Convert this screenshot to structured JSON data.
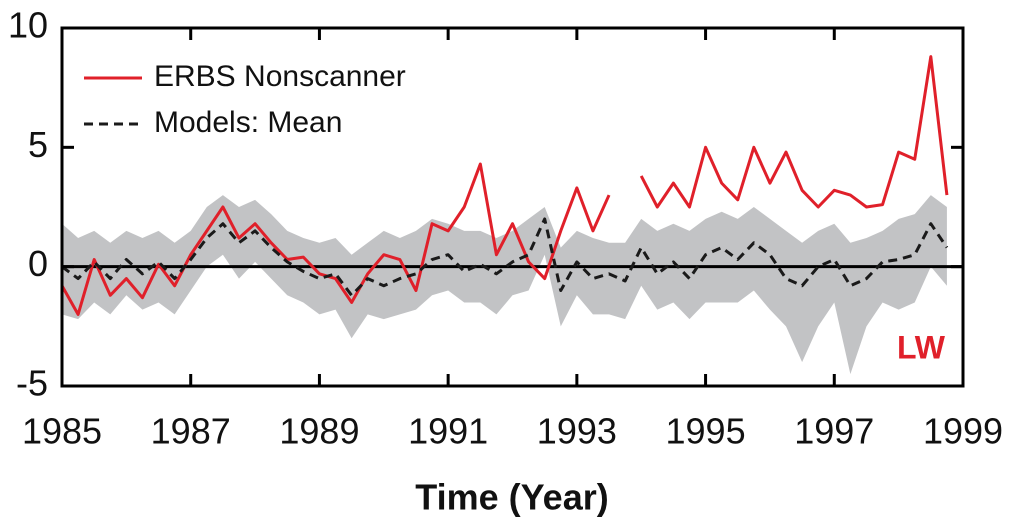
{
  "chart_data": {
    "type": "line",
    "x_label": "Time (Year)",
    "annotation": "LW",
    "annotation_color": "#e0202a",
    "x": [
      1985,
      1985.25,
      1985.5,
      1985.75,
      1986,
      1986.25,
      1986.5,
      1986.75,
      1987,
      1987.25,
      1987.5,
      1987.75,
      1988,
      1988.25,
      1988.5,
      1988.75,
      1989,
      1989.25,
      1989.5,
      1989.75,
      1990,
      1990.25,
      1990.5,
      1990.75,
      1991,
      1991.25,
      1991.5,
      1991.75,
      1992,
      1992.25,
      1992.5,
      1992.75,
      1993,
      1993.25,
      1993.5,
      1993.75,
      1994,
      1994.25,
      1994.5,
      1994.75,
      1995,
      1995.25,
      1995.5,
      1995.75,
      1996,
      1996.25,
      1996.5,
      1996.75,
      1997,
      1997.25,
      1997.5,
      1997.75,
      1998,
      1998.25,
      1998.5,
      1998.75
    ],
    "series": [
      {
        "name": "ERBS Nonscanner",
        "color": "#e0202a",
        "dash": false,
        "values": [
          -0.8,
          -2,
          0.3,
          -1.2,
          -0.5,
          -1.3,
          0.1,
          -0.8,
          0.5,
          1.5,
          2.5,
          1.2,
          1.8,
          1.0,
          0.3,
          0.4,
          -0.3,
          -0.5,
          -1.5,
          -0.3,
          0.5,
          0.3,
          -1.0,
          1.8,
          1.5,
          2.5,
          4.3,
          0.5,
          1.8,
          0.2,
          -0.5,
          1.5,
          3.3,
          1.5,
          3.0,
          null,
          3.8,
          2.5,
          3.5,
          2.5,
          5.0,
          3.5,
          2.8,
          5.0,
          3.5,
          4.8,
          3.2,
          2.5,
          3.2,
          3.0,
          2.5,
          2.6,
          4.8,
          4.5,
          8.8,
          3.0
        ]
      },
      {
        "name": "Models: Mean",
        "color": "#1a1a1a",
        "dash": true,
        "values": [
          0,
          -0.5,
          0.2,
          -0.5,
          0.3,
          -0.3,
          0.2,
          -0.5,
          0.3,
          1.2,
          1.8,
          1.0,
          1.5,
          0.8,
          0.2,
          -0.2,
          -0.5,
          -0.3,
          -1.2,
          -0.5,
          -0.8,
          -0.5,
          -0.3,
          0.3,
          0.5,
          -0.2,
          0.1,
          -0.3,
          0.2,
          0.5,
          2.0,
          -1.0,
          0.2,
          -0.5,
          -0.3,
          -0.6,
          0.8,
          -0.3,
          0.2,
          -0.5,
          0.5,
          0.8,
          0.3,
          1.0,
          0.5,
          -0.5,
          -0.8,
          0.0,
          0.3,
          -0.8,
          -0.5,
          0.2,
          0.3,
          0.5,
          1.8,
          0.8
        ]
      }
    ],
    "band": {
      "color": "#c2c3c5",
      "upper": [
        1.8,
        1.2,
        1.5,
        1.0,
        1.5,
        1.2,
        1.5,
        1.0,
        1.5,
        2.5,
        3.0,
        2.5,
        2.8,
        2.2,
        1.5,
        1.2,
        1.0,
        1.2,
        0.5,
        1.0,
        1.5,
        1.2,
        1.5,
        2.0,
        1.8,
        1.5,
        1.5,
        1.2,
        1.5,
        2.0,
        2.5,
        0.8,
        1.5,
        1.2,
        1.0,
        1.0,
        2.0,
        1.5,
        1.8,
        1.5,
        2.0,
        2.3,
        2.0,
        2.5,
        2.0,
        1.5,
        1.0,
        1.5,
        1.8,
        1.0,
        1.2,
        1.5,
        2.0,
        2.2,
        3.0,
        2.5
      ],
      "lower": [
        -2.0,
        -2.2,
        -1.5,
        -2.0,
        -1.2,
        -1.8,
        -1.5,
        -2.0,
        -1.0,
        0.0,
        0.5,
        -0.5,
        0.2,
        -0.5,
        -1.2,
        -1.5,
        -2.0,
        -1.8,
        -3.0,
        -2.0,
        -2.2,
        -2.0,
        -1.8,
        -1.2,
        -1.0,
        -1.5,
        -1.5,
        -2.0,
        -1.2,
        -1.0,
        0.5,
        -2.5,
        -1.2,
        -2.0,
        -2.0,
        -2.2,
        -0.8,
        -1.8,
        -1.5,
        -2.2,
        -1.5,
        -1.5,
        -1.5,
        -1.0,
        -1.8,
        -2.5,
        -4.0,
        -2.5,
        -1.5,
        -4.5,
        -2.5,
        -1.5,
        -1.8,
        -1.5,
        0.0,
        -0.8
      ]
    },
    "reference_line": 0,
    "xlim": [
      1985,
      1999
    ],
    "xticks": [
      1985,
      1987,
      1989,
      1991,
      1993,
      1995,
      1997,
      1999
    ],
    "ylim": [
      -5,
      10
    ],
    "yticks": [
      -5,
      0,
      5,
      10
    ],
    "legend": "upper left",
    "grid": false
  }
}
